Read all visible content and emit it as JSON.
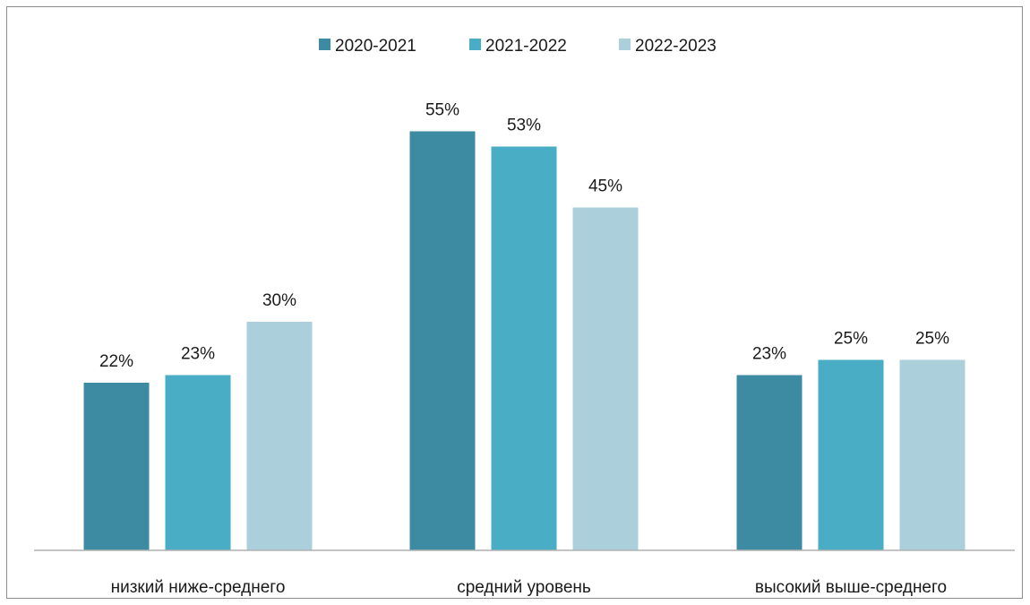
{
  "chart_data": {
    "type": "bar",
    "categories": [
      "низкий ниже-среднего",
      "средний уровень",
      "высокий выше-среднего"
    ],
    "series": [
      {
        "name": "2020-2021",
        "values": [
          22,
          55,
          23
        ],
        "color": "#3c8ba2"
      },
      {
        "name": "2021-2022",
        "values": [
          23,
          53,
          25
        ],
        "color": "#4aadc6"
      },
      {
        "name": "2022-2023",
        "values": [
          30,
          45,
          25
        ],
        "color": "#abd0dc"
      }
    ],
    "value_suffix": "%",
    "ylim": [
      0,
      60
    ],
    "legend_position": "top-center",
    "grid": false
  }
}
